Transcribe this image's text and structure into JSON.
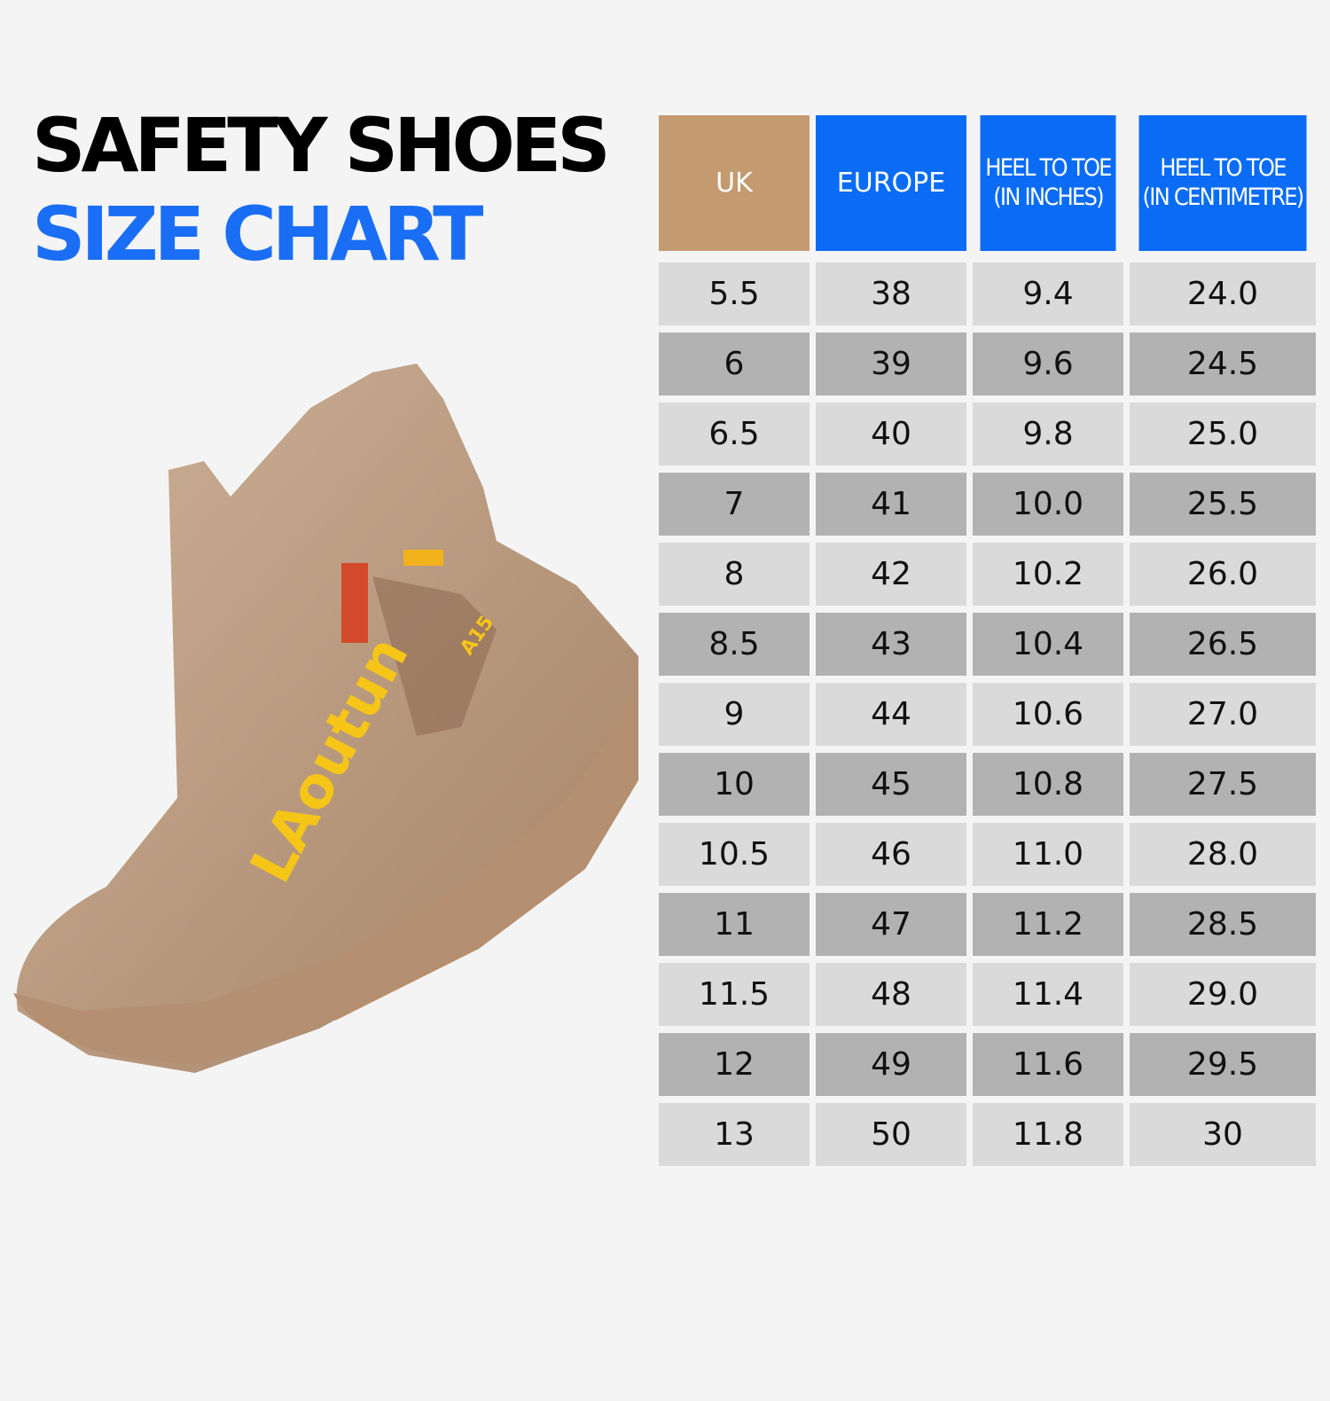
{
  "header": {
    "title": "SAFETY SHOES",
    "subtitle": "SIZE CHART"
  },
  "image": {
    "brand": "LAoutun",
    "model": "A15"
  },
  "table": {
    "columns": [
      [
        "UK"
      ],
      [
        "EUROPE"
      ],
      [
        "HEEL TO TOE",
        "(IN INCHES)"
      ],
      [
        "HEEL TO TOE",
        "(IN CENTIMETRE)"
      ]
    ],
    "rows": [
      [
        "5.5",
        "38",
        "9.4",
        "24.0"
      ],
      [
        "6",
        "39",
        "9.6",
        "24.5"
      ],
      [
        "6.5",
        "40",
        "9.8",
        "25.0"
      ],
      [
        "7",
        "41",
        "10.0",
        "25.5"
      ],
      [
        "8",
        "42",
        "10.2",
        "26.0"
      ],
      [
        "8.5",
        "43",
        "10.4",
        "26.5"
      ],
      [
        "9",
        "44",
        "10.6",
        "27.0"
      ],
      [
        "10",
        "45",
        "10.8",
        "27.5"
      ],
      [
        "10.5",
        "46",
        "11.0",
        "28.0"
      ],
      [
        "11",
        "47",
        "11.2",
        "28.5"
      ],
      [
        "11.5",
        "48",
        "11.4",
        "29.0"
      ],
      [
        "12",
        "49",
        "11.6",
        "29.5"
      ],
      [
        "13",
        "50",
        "11.8",
        "30"
      ]
    ]
  }
}
